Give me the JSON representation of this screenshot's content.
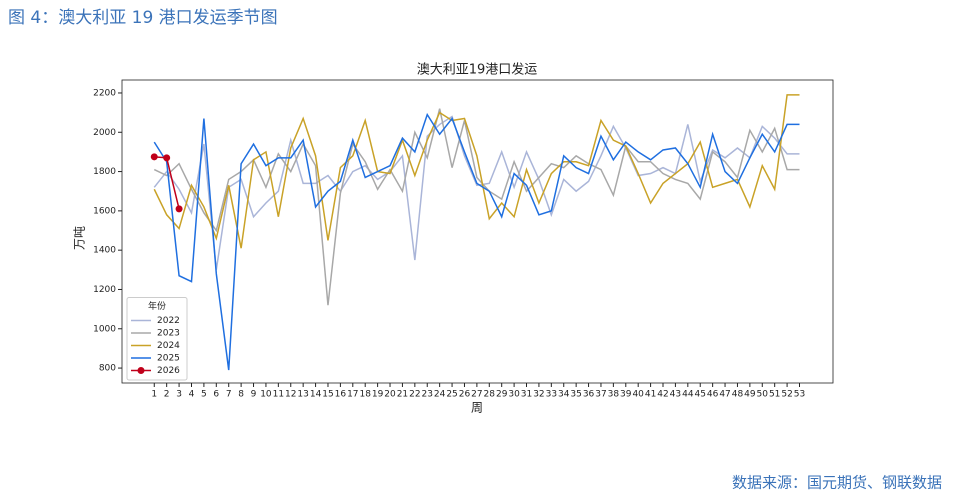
{
  "header": {
    "title": "图 4：澳大利亚 19 港口发运季节图"
  },
  "footer": {
    "source": "数据来源：国元期货、钢联数据"
  },
  "chart_data": {
    "type": "line",
    "title": "澳大利亚19港口发运",
    "xlabel": "周",
    "ylabel": "万吨",
    "x": [
      1,
      2,
      3,
      4,
      5,
      6,
      7,
      8,
      9,
      10,
      11,
      12,
      13,
      14,
      15,
      16,
      17,
      18,
      19,
      20,
      21,
      22,
      23,
      24,
      25,
      26,
      27,
      28,
      29,
      30,
      31,
      32,
      33,
      34,
      35,
      36,
      37,
      38,
      39,
      40,
      41,
      42,
      43,
      44,
      45,
      46,
      47,
      48,
      49,
      50,
      51,
      52,
      53
    ],
    "xlim": [
      -1.6,
      55.7
    ],
    "ylim": [
      724,
      2266
    ],
    "yticks": [
      800,
      1000,
      1200,
      1400,
      1600,
      1800,
      2000,
      2200
    ],
    "legend_title": "年份",
    "legend": "lower left",
    "series": [
      {
        "name": "2022",
        "color": "#aab5d8",
        "values": [
          1720,
          1800,
          1710,
          1590,
          1940,
          1300,
          1720,
          1760,
          1570,
          1640,
          1700,
          1960,
          1740,
          1740,
          1780,
          1700,
          1800,
          1830,
          1760,
          1800,
          1880,
          1350,
          1980,
          2040,
          2080,
          1880,
          1730,
          1740,
          1900,
          1720,
          1900,
          1760,
          1580,
          1760,
          1700,
          1750,
          1880,
          2030,
          1920,
          1780,
          1790,
          1820,
          1790,
          2040,
          1750,
          1910,
          1870,
          1920,
          1870,
          2030,
          1970,
          1890,
          1890
        ]
      },
      {
        "name": "2023",
        "color": "#a8a8a8",
        "values": [
          1810,
          1780,
          1840,
          1710,
          1590,
          1500,
          1760,
          1800,
          1860,
          1720,
          1890,
          1800,
          1940,
          1830,
          1120,
          1690,
          1940,
          1850,
          1710,
          1810,
          1700,
          2000,
          1870,
          2120,
          1820,
          2060,
          1770,
          1700,
          1660,
          1850,
          1700,
          1770,
          1840,
          1820,
          1880,
          1840,
          1810,
          1680,
          1930,
          1850,
          1850,
          1790,
          1760,
          1740,
          1660,
          1900,
          1850,
          1770,
          2010,
          1900,
          2020,
          1810,
          1810
        ]
      },
      {
        "name": "2024",
        "color": "#c9a227",
        "values": [
          1710,
          1580,
          1510,
          1730,
          1620,
          1460,
          1730,
          1410,
          1860,
          1900,
          1570,
          1920,
          2070,
          1880,
          1450,
          1820,
          1880,
          2060,
          1800,
          1790,
          1960,
          1780,
          1960,
          2100,
          2060,
          2070,
          1880,
          1560,
          1640,
          1570,
          1810,
          1640,
          1790,
          1850,
          1850,
          1830,
          2060,
          1960,
          1930,
          1790,
          1640,
          1740,
          1790,
          1840,
          1950,
          1720,
          1740,
          1760,
          1620,
          1830,
          1710,
          2190,
          2190
        ]
      },
      {
        "name": "2025",
        "color": "#1f6fe0",
        "values": [
          1950,
          1850,
          1270,
          1240,
          2070,
          1280,
          790,
          1840,
          1940,
          1830,
          1870,
          1870,
          1960,
          1620,
          1700,
          1750,
          1960,
          1770,
          1800,
          1830,
          1970,
          1900,
          2090,
          1990,
          2070,
          1900,
          1740,
          1700,
          1570,
          1790,
          1730,
          1580,
          1600,
          1880,
          1820,
          1790,
          1980,
          1860,
          1950,
          1900,
          1860,
          1910,
          1920,
          1840,
          1720,
          1990,
          1800,
          1740,
          1870,
          1990,
          1900,
          2040,
          2040
        ]
      },
      {
        "name": "2026",
        "color": "#c0001a",
        "marker": true,
        "values": [
          1875,
          1870,
          1610,
          null,
          null,
          null,
          null,
          null,
          null,
          null,
          null,
          null,
          null,
          null,
          null,
          null,
          null,
          null,
          null,
          null,
          null,
          null,
          null,
          null,
          null,
          null,
          null,
          null,
          null,
          null,
          null,
          null,
          null,
          null,
          null,
          null,
          null,
          null,
          null,
          null,
          null,
          null,
          null,
          null,
          null,
          null,
          null,
          null,
          null,
          null,
          null,
          null,
          null
        ]
      }
    ]
  }
}
